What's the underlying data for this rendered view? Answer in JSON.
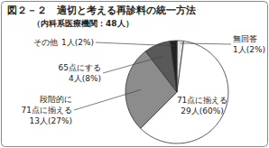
{
  "chart_data": {
    "type": "pie",
    "title": "図２－２　適切と考える再診料の統一方法",
    "subtitle": "（内科系医療機関：48人）",
    "categories": [
      "無回答",
      "71点に揃える",
      "段階的に\n71点に揃える",
      "65点にする",
      "その他"
    ],
    "values": [
      1,
      29,
      13,
      4,
      1
    ],
    "value_labels": [
      "1人(2%)",
      "29人(60%)",
      "13人(27%)",
      "4人(8%)",
      "1人(2%)"
    ],
    "colors": [
      "#e6e6e6",
      "#ffffff",
      "#8c8c8c",
      "#595959",
      "#222222"
    ],
    "data_labels": true
  }
}
